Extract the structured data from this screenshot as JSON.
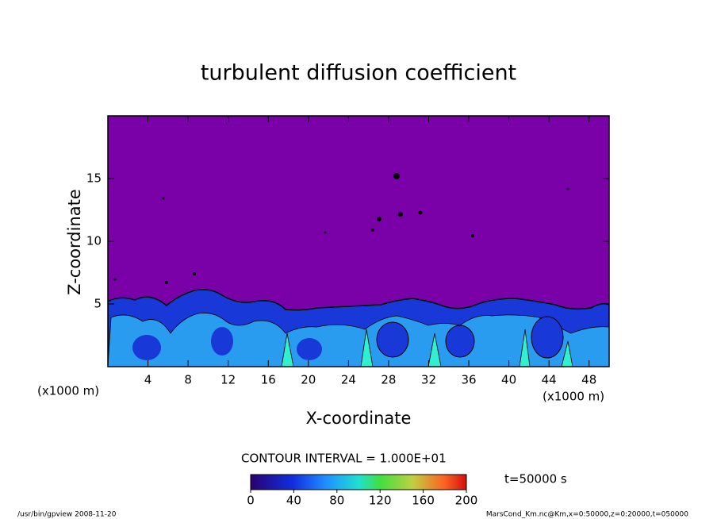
{
  "chart_data": {
    "type": "contour",
    "title": "turbulent diffusion coefficient",
    "xlabel": "X-coordinate",
    "ylabel": "Z-coordinate",
    "x_unit": "(x1000 m)",
    "xlim": [
      0,
      50
    ],
    "xticks": [
      4,
      8,
      12,
      16,
      20,
      24,
      28,
      32,
      36,
      40,
      44,
      48
    ],
    "ylim": [
      0,
      20
    ],
    "yticks": [
      5,
      10,
      15
    ],
    "contour_interval": "CONTOUR INTERVAL = 1.000E+01",
    "time": "t=50000 s",
    "colorbar": {
      "lim": [
        0,
        200
      ],
      "ticks": [
        0,
        40,
        80,
        120,
        160,
        200
      ]
    },
    "background_color": "#7a00a8",
    "footer_left": "/usr/bin/gpview  2008-11-20",
    "footer_right": "MarsCond_Km.nc@Km,x=0:50000,z=0:20000,t=050000"
  }
}
